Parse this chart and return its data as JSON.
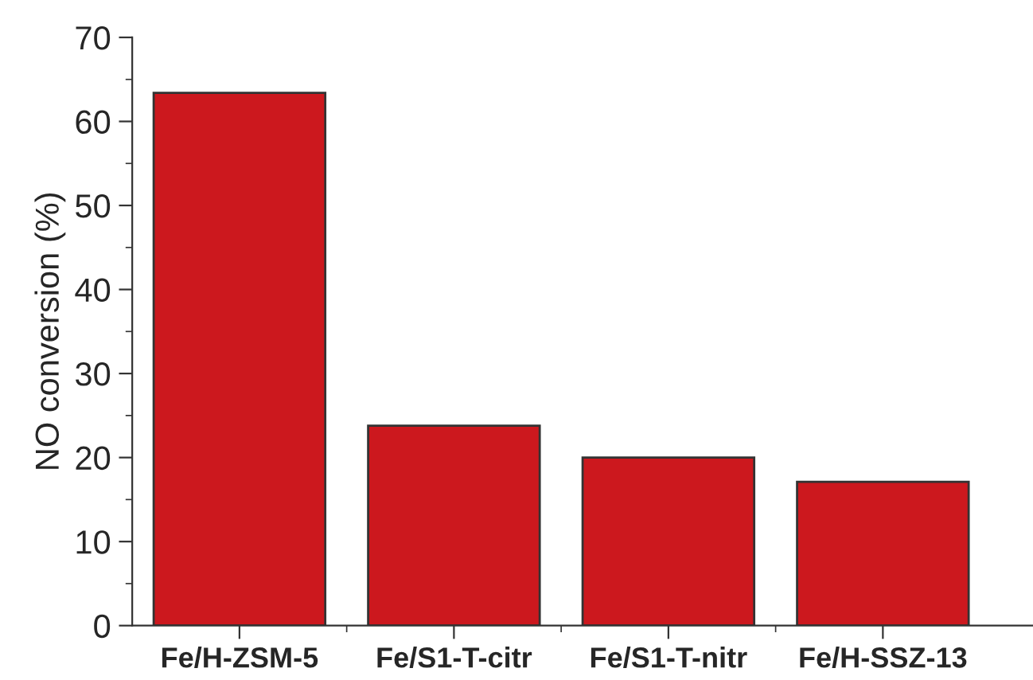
{
  "chart_data": {
    "type": "bar",
    "ylabel": "NO conversion (%)",
    "categories": [
      "Fe/H-ZSM-5",
      "Fe/S1-T-citr",
      "Fe/S1-T-nitr",
      "Fe/H-SSZ-13"
    ],
    "values": [
      63.4,
      23.8,
      20.0,
      17.1
    ],
    "color": "#cc181e",
    "ylim": [
      0,
      70
    ],
    "yticks": [
      0,
      10,
      20,
      30,
      40,
      50,
      60,
      70
    ],
    "grid": false,
    "legend": false
  }
}
